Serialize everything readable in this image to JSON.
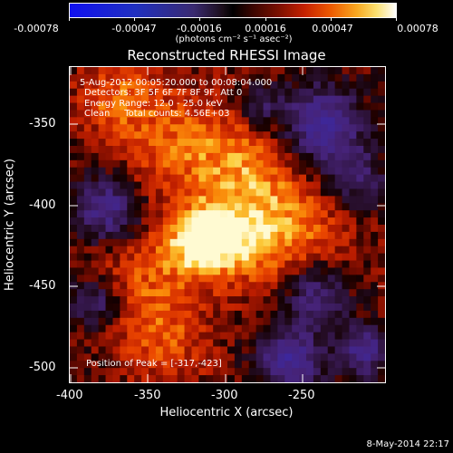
{
  "colorbar": {
    "tick_labels": [
      "-0.00078",
      "-0.00047",
      "-0.00016",
      "0.00016",
      "0.00047",
      "0.00078"
    ],
    "units": "(photons cm⁻² s⁻¹ asec⁻²)"
  },
  "title": "Reconstructed RHESSI Image",
  "info": {
    "time_range": "5-Aug-2012 00:05:20.000 to 00:08:04.000",
    "detectors": "Detectors: 3F 5F 6F 7F 8F 9F, Att 0",
    "energy_range": "Energy Range: 12.0 - 25.0 keV",
    "method": "Clean     Total counts: 4.56E+03"
  },
  "peak": "Position of Peak = [-317,-423]",
  "x_axis": {
    "title": "Heliocentric X (arcsec)",
    "ticks": [
      "-400",
      "-350",
      "-300",
      "-250"
    ]
  },
  "y_axis": {
    "title": "Heliocentric Y (arcsec)",
    "ticks": [
      "-350",
      "-400",
      "-450",
      "-500"
    ]
  },
  "timestamp": "8-May-2014 22:17"
}
